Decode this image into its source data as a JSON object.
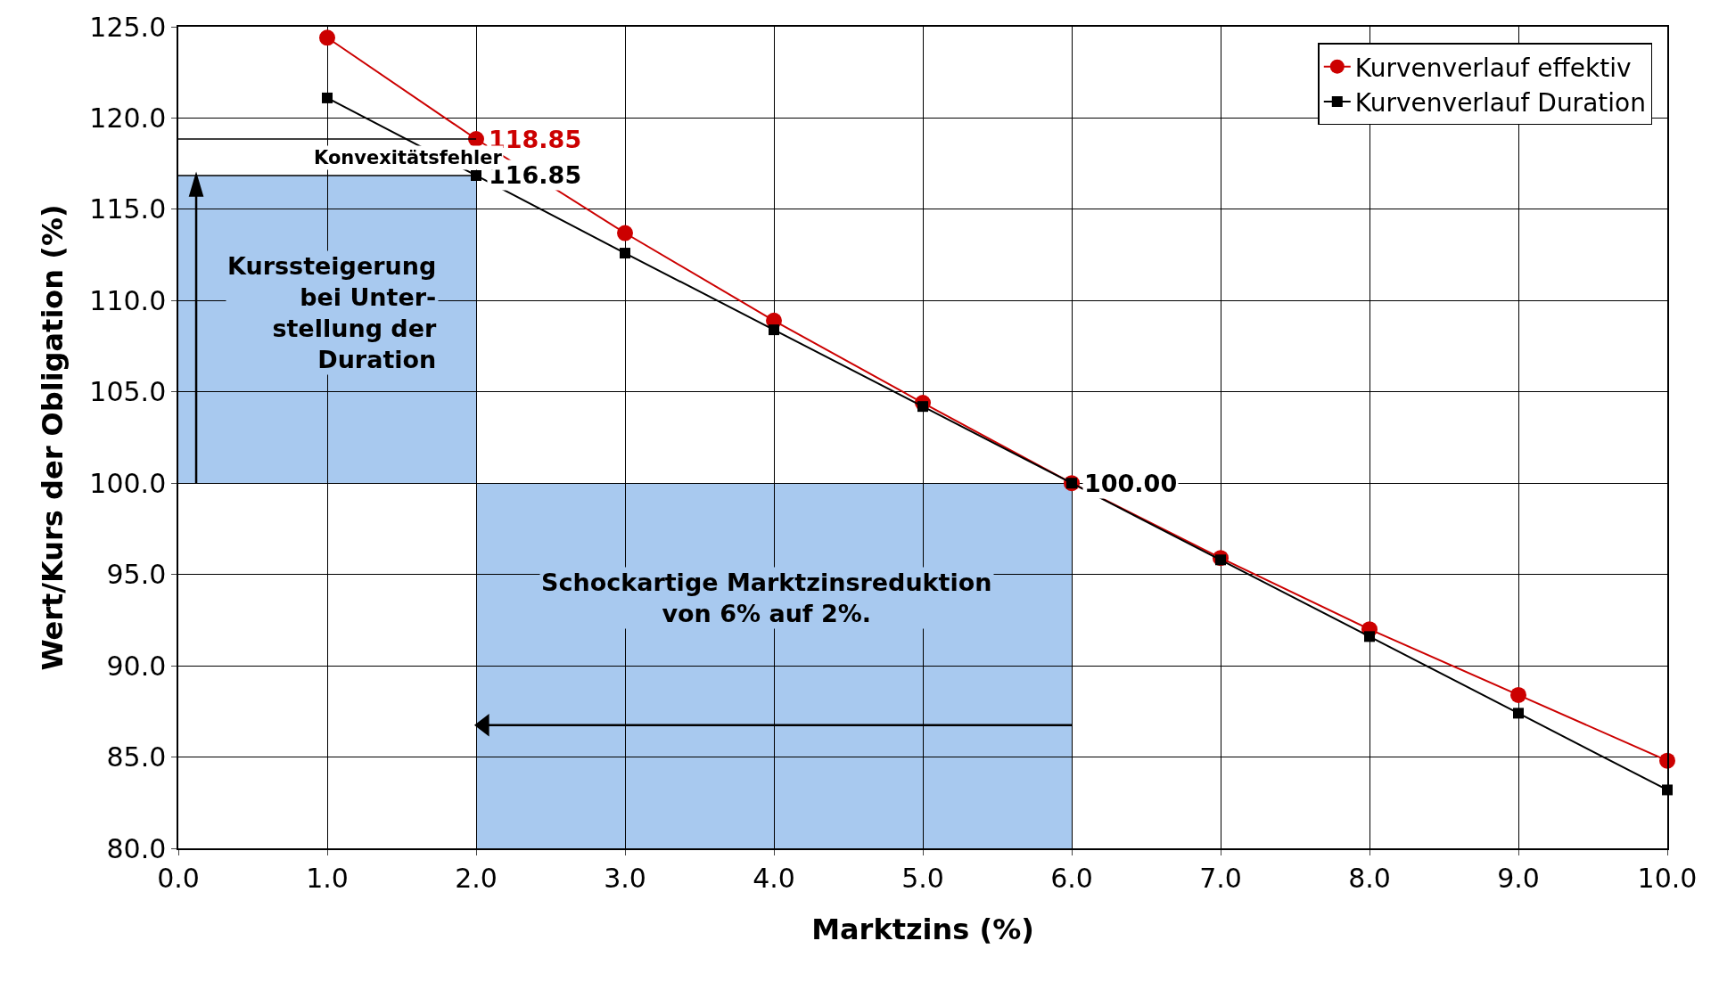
{
  "chart_data": {
    "type": "line",
    "xlabel": "Marktzins (%)",
    "ylabel": "Wert/Kurs der Obligation (%)",
    "x": [
      1,
      2,
      3,
      4,
      5,
      6,
      7,
      8,
      9,
      10
    ],
    "series": [
      {
        "name": "Kurvenverlauf effektiv",
        "color": "#cc0000",
        "marker": "circle",
        "values": [
          124.4,
          118.85,
          113.7,
          108.9,
          104.4,
          100.0,
          95.9,
          92.0,
          88.4,
          84.8
        ],
        "value_labels": [
          null,
          "118.85",
          null,
          null,
          null,
          null,
          null,
          null,
          null,
          null
        ]
      },
      {
        "name": "Kurvenverlauf Duration",
        "color": "#000000",
        "marker": "square",
        "values": [
          121.1,
          116.85,
          112.6,
          108.4,
          104.2,
          100.0,
          95.8,
          91.6,
          87.4,
          83.2
        ],
        "value_labels": [
          null,
          "116.85",
          null,
          null,
          null,
          "100.00",
          null,
          null,
          null,
          null
        ]
      }
    ],
    "xlim": [
      0,
      10
    ],
    "xticks": [
      {
        "value": 0,
        "label": "0.0"
      },
      {
        "value": 1,
        "label": "1.0"
      },
      {
        "value": 2,
        "label": "2.0"
      },
      {
        "value": 3,
        "label": "3.0"
      },
      {
        "value": 4,
        "label": "4.0"
      },
      {
        "value": 5,
        "label": "5.0"
      },
      {
        "value": 6,
        "label": "6.0"
      },
      {
        "value": 7,
        "label": "7.0"
      },
      {
        "value": 8,
        "label": "8.0"
      },
      {
        "value": 9,
        "label": "9.0"
      },
      {
        "value": 10,
        "label": "10.0"
      }
    ],
    "ylim": [
      80,
      125
    ],
    "yticks": [
      {
        "value": 80,
        "label": "80.0"
      },
      {
        "value": 85,
        "label": "85.0"
      },
      {
        "value": 90,
        "label": "90.0"
      },
      {
        "value": 95,
        "label": "95.0"
      },
      {
        "value": 100,
        "label": "100.0"
      },
      {
        "value": 105,
        "label": "105.0"
      },
      {
        "value": 110,
        "label": "110.0"
      },
      {
        "value": 115,
        "label": "115.0"
      },
      {
        "value": 120,
        "label": "120.0"
      },
      {
        "value": 125,
        "label": "125.0"
      }
    ],
    "grid": true,
    "legend": "top right",
    "line_style": "solid",
    "annotations": [
      "Konvexitätsfehler",
      "Kurssteigerung\nbei Unter-\nstellung der\nDuration",
      "Schockartige Marktzinsreduktion\nvon 6% auf 2%."
    ]
  }
}
